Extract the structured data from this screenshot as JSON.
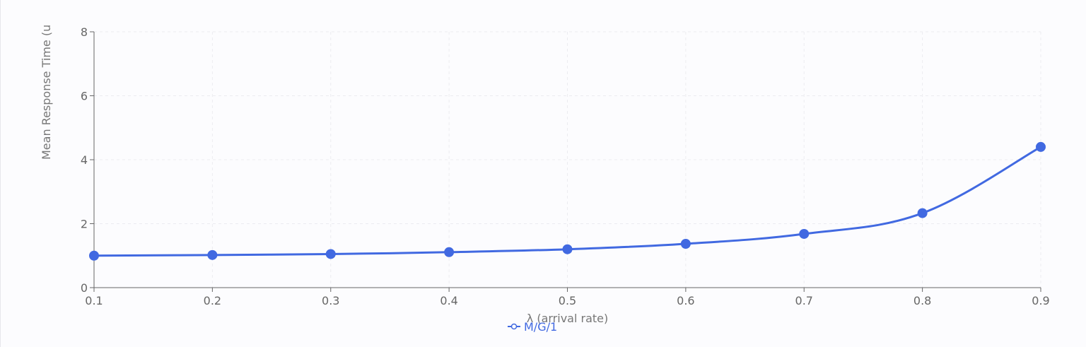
{
  "chart_data": {
    "type": "line",
    "title": "",
    "xlabel": "λ (arrival rate)",
    "ylabel": "Mean Response Time (u",
    "x": [
      0.1,
      0.2,
      0.3,
      0.4,
      0.5,
      0.6,
      0.7,
      0.8,
      0.9
    ],
    "x_ticks": [
      "0.1",
      "0.2",
      "0.3",
      "0.4",
      "0.5",
      "0.6",
      "0.7",
      "0.8",
      "0.9"
    ],
    "y_ticks": [
      "0",
      "2",
      "4",
      "6",
      "8"
    ],
    "xlim": [
      0.1,
      0.9
    ],
    "ylim": [
      0,
      8
    ],
    "grid": true,
    "legend_position": "bottom-center",
    "series": [
      {
        "name": "M/G/1",
        "color": "#4169e1",
        "values": [
          1.0,
          1.02,
          1.05,
          1.11,
          1.2,
          1.37,
          1.68,
          2.33,
          4.4
        ]
      }
    ]
  }
}
